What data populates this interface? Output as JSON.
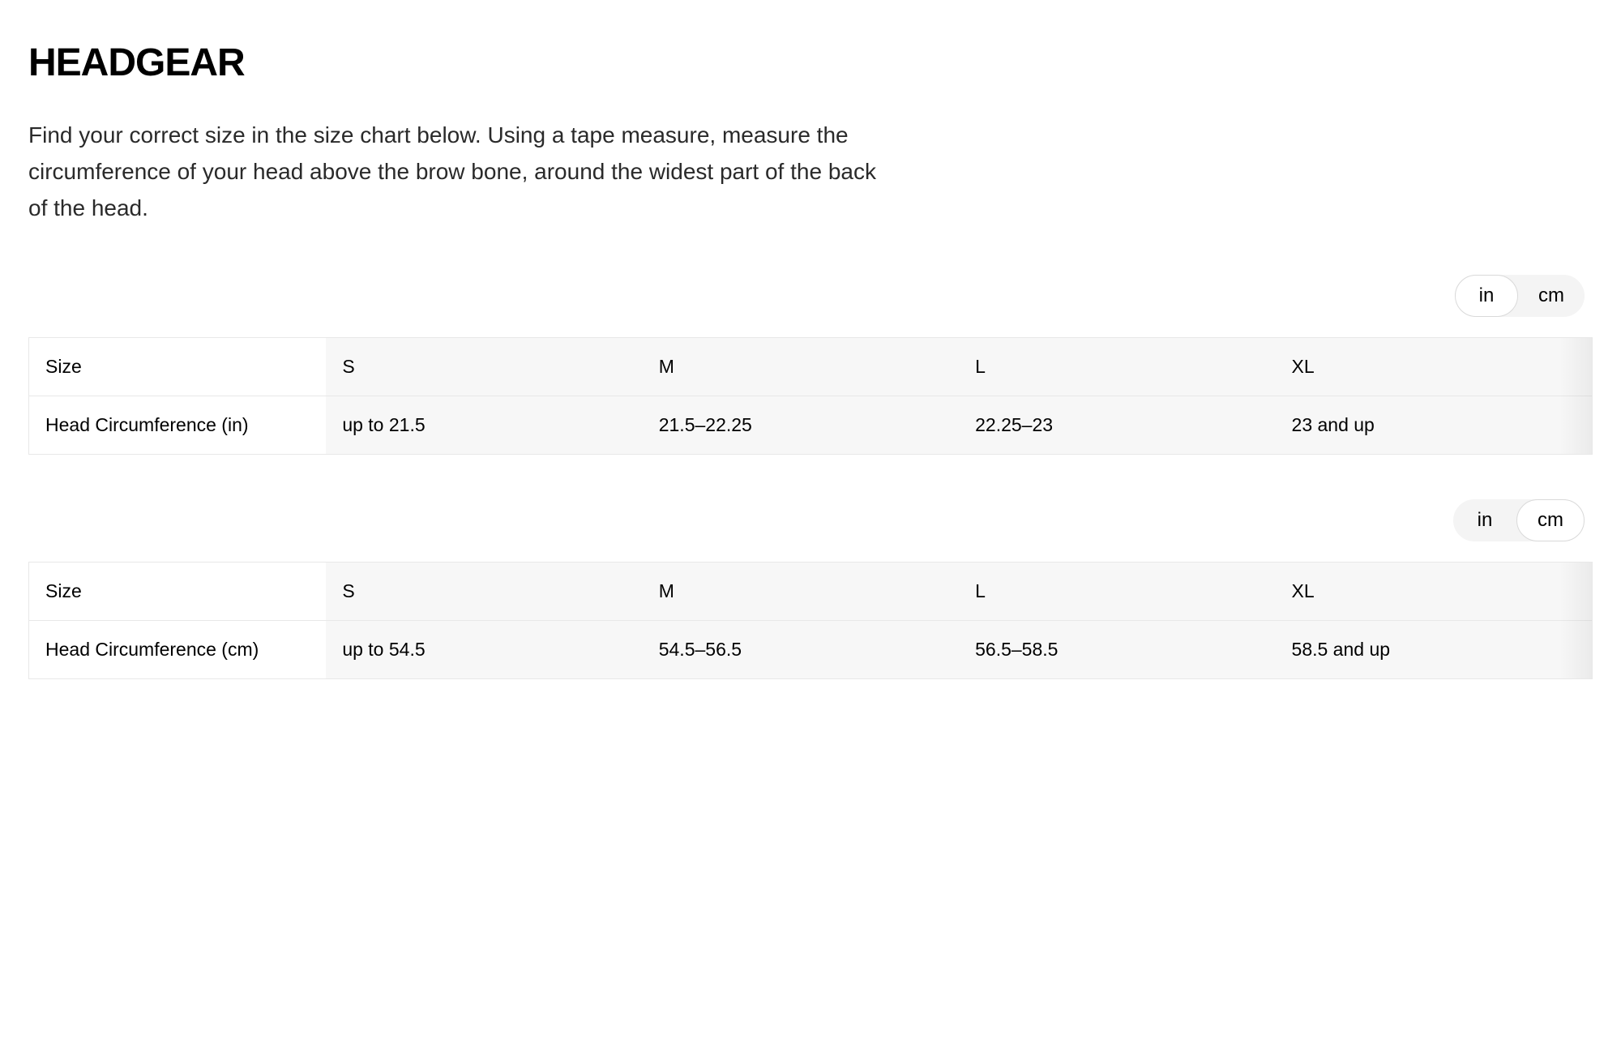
{
  "title": "HEADGEAR",
  "description": "Find your correct size in the size chart below. Using a tape measure, measure the circumference of your head above the brow bone, around the widest part of the back of the head.",
  "unit_labels": {
    "in": "in",
    "cm": "cm"
  },
  "tables": [
    {
      "active_unit": "in",
      "header": {
        "label": "Size",
        "sizes": [
          "S",
          "M",
          "L",
          "XL"
        ]
      },
      "row": {
        "label": "Head Circumference (in)",
        "values": [
          "up to 21.5",
          "21.5–22.25",
          "22.25–23",
          "23 and up"
        ]
      },
      "colors": {
        "header_bg": "#f7f7f7",
        "first_col_bg": "#ffffff",
        "border": "#e8e8e8",
        "text": "#000000",
        "fontsize": 23
      }
    },
    {
      "active_unit": "cm",
      "header": {
        "label": "Size",
        "sizes": [
          "S",
          "M",
          "L",
          "XL"
        ]
      },
      "row": {
        "label": "Head Circumference (cm)",
        "values": [
          "up to 54.5",
          "54.5–56.5",
          "56.5–58.5",
          "58.5 and up"
        ]
      },
      "colors": {
        "header_bg": "#f7f7f7",
        "first_col_bg": "#ffffff",
        "border": "#e8e8e8",
        "text": "#000000",
        "fontsize": 23
      }
    }
  ],
  "toggle_style": {
    "bg": "#f4f4f4",
    "active_bg": "#ffffff",
    "active_border": "#d9d9d9",
    "fontsize": 24
  }
}
